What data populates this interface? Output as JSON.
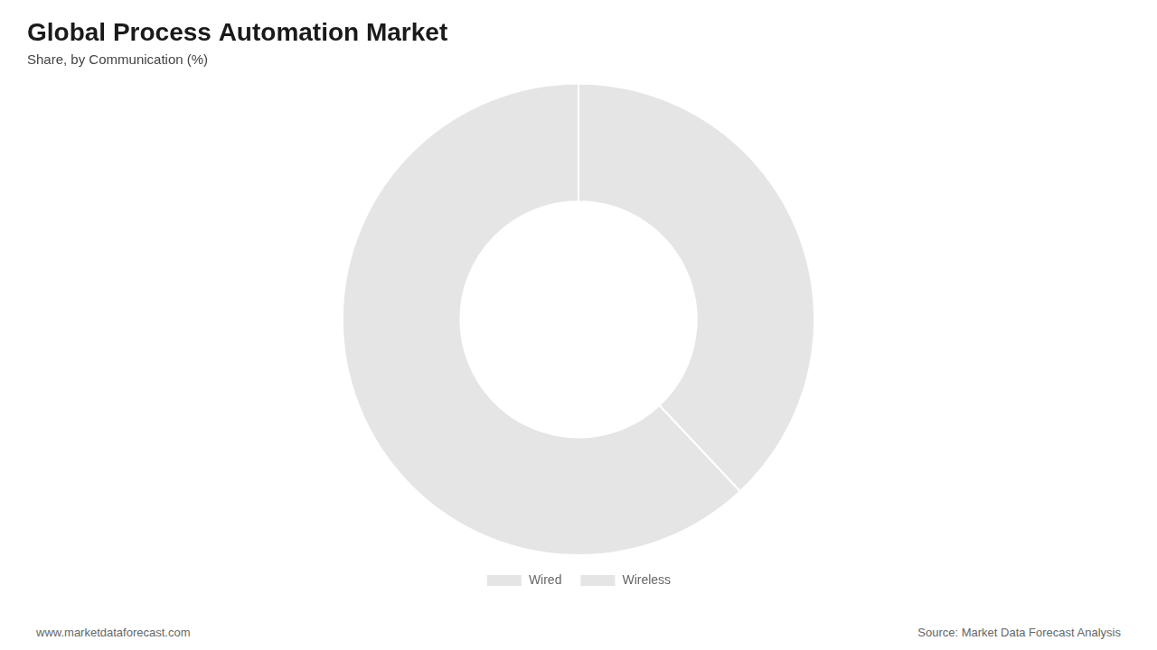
{
  "chart_data": {
    "type": "doughnut",
    "title": "Global Process Automation Market",
    "subtitle": "Share, by Communication (%)",
    "categories": [
      "Wired",
      "Wireless"
    ],
    "values": [
      38,
      62
    ],
    "legend": "bottom",
    "annotations": [
      "www.marketdataforecast.com",
      "Source: Market Data Forecast Analysis"
    ]
  }
}
